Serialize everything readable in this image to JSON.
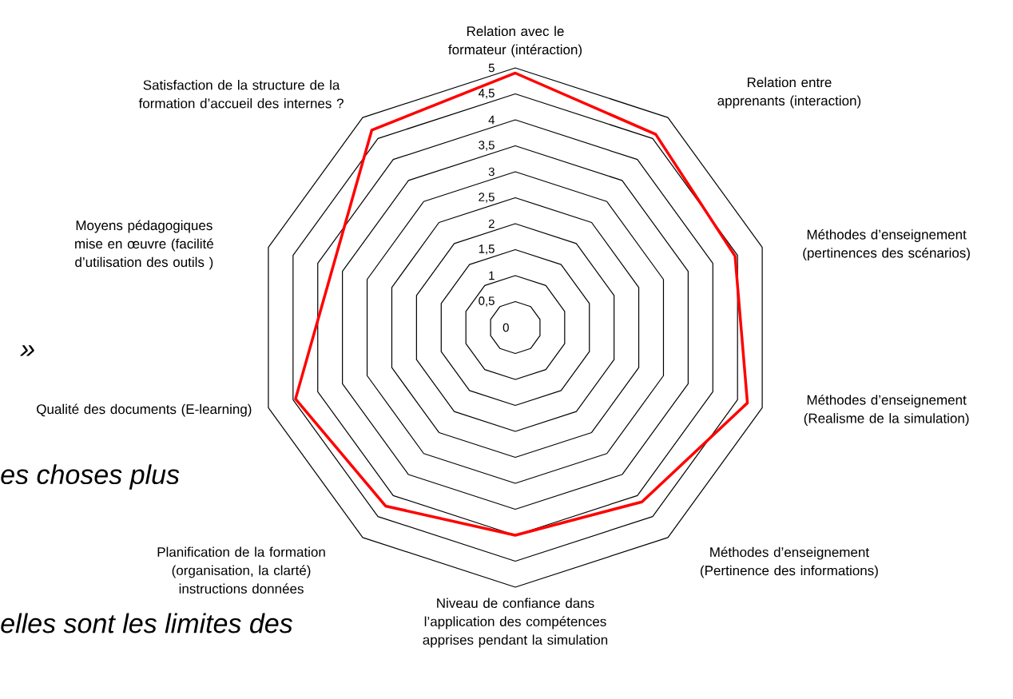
{
  "chart_data": {
    "type": "radar",
    "categories": [
      "Relation avec le formateur (intéraction)",
      "Relation entre apprenants (interaction)",
      "Méthodes d’enseignement (pertinences des scénarios)",
      "Méthodes d’enseignement (Realisme de la simulation)",
      "Méthodes d’enseignement (Pertinence des informations)",
      "Niveau de confiance dans l’application des compétences apprises pendant la simulation",
      "Planification de la formation (organisation, la clarté) instructions données",
      "Qualité des documents (E-learning)",
      "Moyens pédagogiques mise en œuvre (facilité d’utilisation des outils )",
      "Satisfaction de la structure de la formation d’accueil des internes ?"
    ],
    "series": [
      {
        "color": "#ff0000",
        "values": [
          4.9,
          4.6,
          4.45,
          4.7,
          4.15,
          4.0,
          4.25,
          4.45,
          3.7,
          4.7
        ]
      }
    ],
    "ylim": [
      0,
      5
    ],
    "yticks": [
      0,
      {
        "value": 0.5,
        "label": "0,5"
      },
      1,
      {
        "value": 1.5,
        "label": "1,5"
      },
      2,
      {
        "value": 2.5,
        "label": "2,5"
      },
      3,
      {
        "value": 3.5,
        "label": "3,5"
      },
      4,
      {
        "value": 4.5,
        "label": "4,5"
      },
      5
    ],
    "grid": true,
    "marker": "none",
    "line_style": "solid",
    "annotations": [
      "»",
      "es choses plus",
      "elles sont les limites des"
    ]
  }
}
